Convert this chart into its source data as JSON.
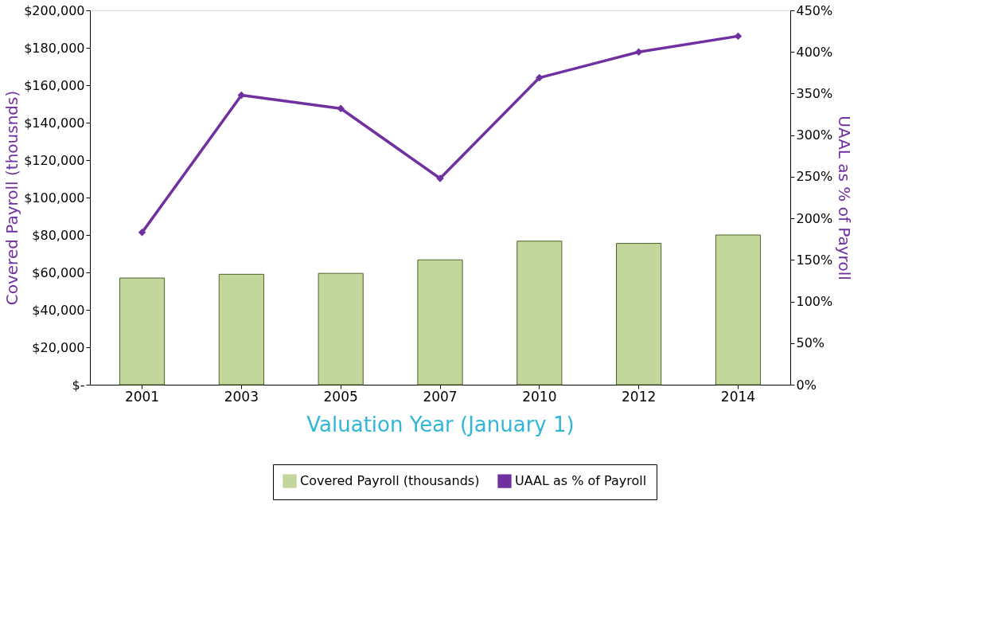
{
  "chart_data": {
    "type": "bar",
    "xlabel": "Valuation Year (January 1)",
    "ylabel": "Covered Payroll (thousnds)",
    "y2label": "UAAL as % of Payroll",
    "categories": [
      "2001",
      "2003",
      "2005",
      "2007",
      "2010",
      "2012",
      "2014"
    ],
    "series": [
      {
        "name": "Covered Payroll (thousands)",
        "color": "#c3d69b",
        "values": [
          57000,
          59000,
          59500,
          66700,
          76700,
          75500,
          80000
        ]
      },
      {
        "name": "UAAL as % of Payroll",
        "type": "line",
        "axis": "y2",
        "color": "#7030a0",
        "marker": "diamond",
        "values": [
          183,
          348,
          332,
          248,
          369,
          400,
          419
        ]
      }
    ],
    "ylim": [
      0,
      200000
    ],
    "yticks": [
      {
        "value": 0,
        "label": "$-"
      },
      {
        "value": 20000,
        "label": "$20,000"
      },
      {
        "value": 40000,
        "label": "$40,000"
      },
      {
        "value": 60000,
        "label": "$60,000"
      },
      {
        "value": 80000,
        "label": "$80,000"
      },
      {
        "value": 100000,
        "label": "$100,000"
      },
      {
        "value": 120000,
        "label": "$120,000"
      },
      {
        "value": 140000,
        "label": "$140,000"
      },
      {
        "value": 160000,
        "label": "$160,000"
      },
      {
        "value": 180000,
        "label": "$180,000"
      },
      {
        "value": 200000,
        "label": "$200,000"
      }
    ],
    "y2lim": [
      0,
      450
    ],
    "y2ticks": [
      {
        "value": 0,
        "label": "0%"
      },
      {
        "value": 50,
        "label": "50%"
      },
      {
        "value": 100,
        "label": "100%"
      },
      {
        "value": 150,
        "label": "150%"
      },
      {
        "value": 200,
        "label": "200%"
      },
      {
        "value": 250,
        "label": "250%"
      },
      {
        "value": 300,
        "label": "300%"
      },
      {
        "value": 350,
        "label": "350%"
      },
      {
        "value": 400,
        "label": "400%"
      },
      {
        "value": 450,
        "label": "450%"
      }
    ],
    "grid": false,
    "legend": "bottom"
  }
}
